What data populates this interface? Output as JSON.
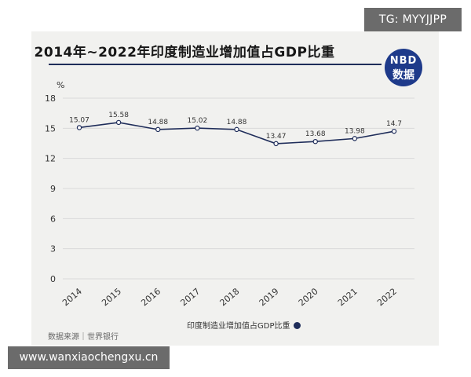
{
  "badges": {
    "top_right": "TG: MYYJJPP",
    "bottom_left": "www.wanxiaochengxu.cn"
  },
  "logo": {
    "line1": "NBD",
    "line2": "数据"
  },
  "source": "数据来源｜世界银行",
  "colors": {
    "series": "#1f2d5a",
    "grid": "#d9d9d9",
    "background": "#f1f1ef"
  },
  "chart_data": {
    "type": "line",
    "title": "2014年~2022年印度制造业增加值占GDP比重",
    "ylabel": "%",
    "xlabel": "",
    "ylim": [
      0,
      18
    ],
    "yticks": [
      0,
      3,
      6,
      9,
      12,
      15,
      18
    ],
    "categories": [
      "2014",
      "2015",
      "2016",
      "2017",
      "2018",
      "2019",
      "2020",
      "2021",
      "2022"
    ],
    "series": [
      {
        "name": "印度制造业增加值占GDP比重",
        "values": [
          15.07,
          15.58,
          14.88,
          15.02,
          14.88,
          13.47,
          13.68,
          13.98,
          14.7
        ]
      }
    ],
    "data_labels": [
      "15.07",
      "15.58",
      "14.88",
      "15.02",
      "14.88",
      "13.47",
      "13.68",
      "13.98",
      "14.7"
    ],
    "grid": "horizontal",
    "legend_position": "bottom"
  }
}
